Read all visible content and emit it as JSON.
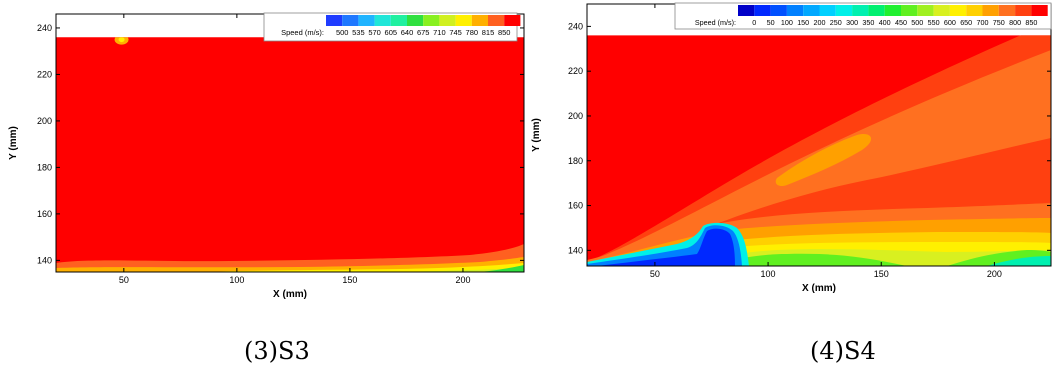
{
  "chart_data": [
    {
      "type": "heatmap",
      "caption": "(3)S3",
      "xlabel": "X (mm)",
      "ylabel": "Y (mm)",
      "xlim": [
        20,
        227
      ],
      "ylim": [
        135,
        246
      ],
      "x_ticks": [
        50,
        100,
        150,
        200
      ],
      "y_ticks": [
        140,
        160,
        180,
        200,
        220,
        240
      ],
      "domain_top_y": 236,
      "legend": {
        "title": "Speed (m/s):",
        "levels": [
          500,
          535,
          570,
          605,
          640,
          675,
          710,
          745,
          780,
          815,
          850
        ],
        "colors": [
          "#1f3cff",
          "#1f78ff",
          "#20b4ff",
          "#20e6d8",
          "#20f0a0",
          "#30e040",
          "#88f020",
          "#d0f020",
          "#fff000",
          "#ffb000",
          "#ff6020",
          "#ff0000"
        ]
      },
      "field": "Speed near 850 m/s over most of the domain; lower speeds (about 675-815 m/s) in a thin layer along Y = 135-146 mm, decreasing toward X = 227 mm"
    },
    {
      "type": "heatmap",
      "caption": "(4)S4",
      "xlabel": "X (mm)",
      "ylabel": "Y (mm)",
      "xlim": [
        20,
        225
      ],
      "ylim": [
        133,
        250
      ],
      "x_ticks": [
        50,
        100,
        150,
        200
      ],
      "y_ticks": [
        140,
        160,
        180,
        200,
        220,
        240
      ],
      "domain_top_y": 236,
      "legend": {
        "title": "Speed (m/s):",
        "levels": [
          0,
          50,
          100,
          150,
          200,
          250,
          300,
          350,
          400,
          450,
          500,
          550,
          600,
          650,
          700,
          750,
          800,
          850
        ],
        "colors": [
          "#0000c8",
          "#0028ff",
          "#0050ff",
          "#0080ff",
          "#00a8ff",
          "#00d0ff",
          "#00f0e8",
          "#00f0b0",
          "#00f070",
          "#20f030",
          "#60f020",
          "#a0f020",
          "#d8f020",
          "#fff000",
          "#ffd000",
          "#ffa000",
          "#ff7020",
          "#ff4010",
          "#ff0000"
        ]
      },
      "field": "Upper-left region near 850 m/s; oblique band of 750-800 m/s rising from lower left to upper right; low-speed zone (0-200 m/s) near X = 70-85 mm, Y = 135-153 mm; green 450-600 m/s wake along the bottom boundary"
    }
  ]
}
